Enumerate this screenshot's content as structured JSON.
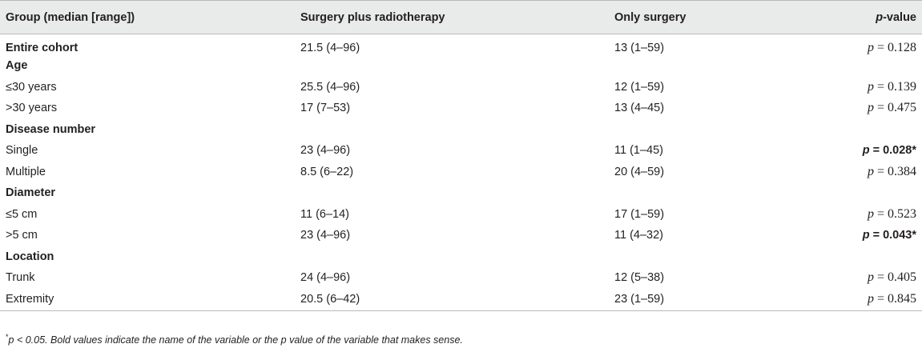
{
  "table": {
    "headers": {
      "group": "Group (median [range])",
      "srt": "Surgery plus radiotherapy",
      "surgery": "Only surgery",
      "p_label_italic": "p",
      "p_label_rest": "-value"
    },
    "rows": [
      {
        "label": "Entire cohort",
        "srt": "21.5 (4–96)",
        "surgery": "13 (1–59)",
        "p_prefix": "p",
        "p_value": " = 0.128",
        "section": true,
        "bold_p": false
      },
      {
        "label": "Age",
        "srt": "",
        "surgery": "",
        "p_prefix": "",
        "p_value": "",
        "section": true,
        "bold_p": false
      },
      {
        "label": "≤30 years",
        "srt": "25.5 (4–96)",
        "surgery": "12 (1–59)",
        "p_prefix": "p",
        "p_value": " = 0.139",
        "section": false,
        "bold_p": false
      },
      {
        "label": ">30 years",
        "srt": "17 (7–53)",
        "surgery": "13 (4–45)",
        "p_prefix": "p",
        "p_value": " = 0.475",
        "section": false,
        "bold_p": false
      },
      {
        "label": "Disease number",
        "srt": "",
        "surgery": "",
        "p_prefix": "",
        "p_value": "",
        "section": true,
        "bold_p": false
      },
      {
        "label": "Single",
        "srt": "23 (4–96)",
        "surgery": "11 (1–45)",
        "p_prefix": "p",
        "p_value": " = 0.028*",
        "section": false,
        "bold_p": true
      },
      {
        "label": "Multiple",
        "srt": "8.5 (6–22)",
        "surgery": "20 (4–59)",
        "p_prefix": "p",
        "p_value": " = 0.384",
        "section": false,
        "bold_p": false
      },
      {
        "label": "Diameter",
        "srt": "",
        "surgery": "",
        "p_prefix": "",
        "p_value": "",
        "section": true,
        "bold_p": false
      },
      {
        "label": "≤5 cm",
        "srt": "11 (6–14)",
        "surgery": "17 (1–59)",
        "p_prefix": "p",
        "p_value": " = 0.523",
        "section": false,
        "bold_p": false
      },
      {
        "label": ">5 cm",
        "srt": "23 (4–96)",
        "surgery": "11 (4–32)",
        "p_prefix": "p",
        "p_value": " = 0.043*",
        "section": false,
        "bold_p": true
      },
      {
        "label": "Location",
        "srt": "",
        "surgery": "",
        "p_prefix": "",
        "p_value": "",
        "section": true,
        "bold_p": false
      },
      {
        "label": "Trunk",
        "srt": "24 (4–96)",
        "surgery": "12 (5–38)",
        "p_prefix": "p",
        "p_value": " = 0.405",
        "section": false,
        "bold_p": false
      },
      {
        "label": "Extremity",
        "srt": "20.5 (6–42)",
        "surgery": "23 (1–59)",
        "p_prefix": "p",
        "p_value": " = 0.845",
        "section": false,
        "bold_p": false
      }
    ]
  },
  "footnote": {
    "marker": "*",
    "text": "p < 0.05. Bold values indicate the name of the variable or the p value of the variable that makes sense."
  }
}
